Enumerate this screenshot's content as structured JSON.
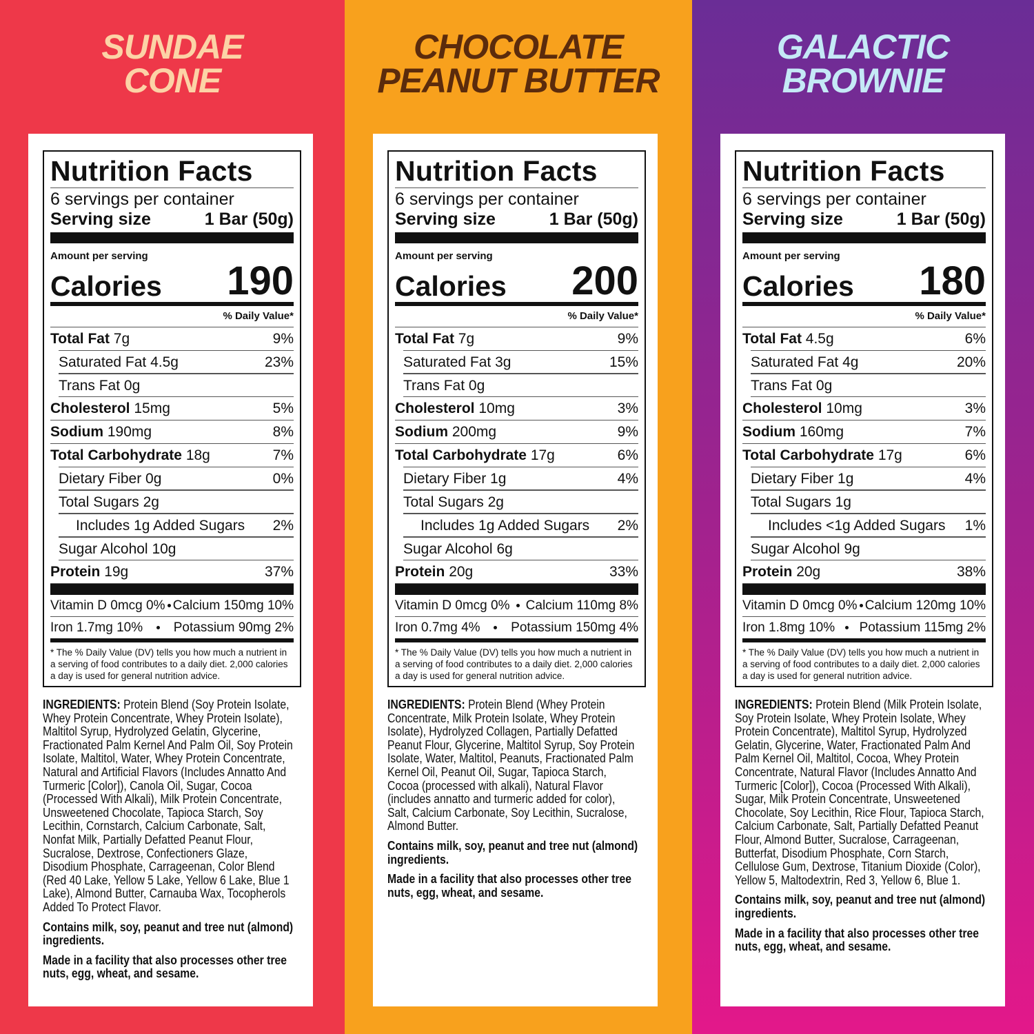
{
  "panels": [
    {
      "title": [
        "SUNDAE",
        "CONE"
      ],
      "nutrition": {
        "heading": "Nutrition Facts",
        "servings": "6 servings per container",
        "serving_size_label": "Serving size",
        "serving_size": "1 Bar (50g)",
        "amount_per_serving": "Amount per serving",
        "calories_label": "Calories",
        "calories": "190",
        "dv_header": "% Daily Value*",
        "rows": [
          {
            "name": "Total Fat",
            "amount": "7g",
            "dv": "9%"
          },
          {
            "name": "Saturated Fat",
            "amount": "4.5g",
            "dv": "23%"
          },
          {
            "name": "Trans Fat",
            "amount": "0g"
          },
          {
            "name": "Cholesterol",
            "amount": "15mg",
            "dv": "5%"
          },
          {
            "name": "Sodium",
            "amount": "190mg",
            "dv": "8%"
          },
          {
            "name": "Total Carbohydrate",
            "amount": "18g",
            "dv": "7%"
          },
          {
            "name": "Dietary Fiber",
            "amount": "0g",
            "dv": "0%"
          },
          {
            "name": "Total Sugars",
            "amount": "2g"
          },
          {
            "name": "Includes 1g Added Sugars",
            "dv": "2%"
          },
          {
            "name": "Sugar Alcohol",
            "amount": "10g"
          },
          {
            "name": "Protein",
            "amount": "19g",
            "dv": "37%"
          }
        ],
        "vitamins": [
          [
            "Vitamin D 0mcg 0%",
            "Calcium 150mg 10%"
          ],
          [
            "Iron 1.7mg 10%",
            "Potassium 90mg 2%"
          ]
        ],
        "footnote": "* The % Daily Value (DV) tells you how much a nutrient in a serving of food contributes to a daily diet. 2,000 calories a day is used for general nutrition advice."
      },
      "ingredients": {
        "label": "INGREDIENTS:",
        "text": "Protein Blend (Soy Protein Isolate, Whey Protein Concentrate, Whey Protein Isolate), Maltitol Syrup, Hydrolyzed Gelatin, Glycerine, Fractionated Palm Kernel And Palm Oil, Soy Protein Isolate, Maltitol, Water, Whey Protein Concentrate, Natural and Artificial Flavors (Includes Annatto And Turmeric [Color]), Canola Oil, Sugar, Cocoa (Processed With Alkali), Milk Protein Concentrate, Unsweetened Chocolate, Tapioca Starch, Soy Lecithin, Cornstarch, Calcium Carbonate, Salt, Nonfat Milk, Partially Defatted Peanut Flour, Sucralose, Dextrose, Confectioners Glaze, Disodium Phosphate, Carrageenan, Color Blend (Red 40 Lake, Yellow 5 Lake, Yellow 6 Lake, Blue 1 Lake), Almond Butter, Carnauba Wax, Tocopherols Added To Protect Flavor."
      },
      "contains": "Contains milk, soy, peanut and tree nut (almond) ingredients.",
      "facility": "Made in a facility that also processes other tree nuts, egg, wheat, and sesame."
    },
    {
      "title": [
        "CHOCOLATE",
        "PEANUT BUTTER"
      ],
      "nutrition": {
        "heading": "Nutrition Facts",
        "servings": "6 servings per container",
        "serving_size_label": "Serving size",
        "serving_size": "1 Bar (50g)",
        "amount_per_serving": "Amount per serving",
        "calories_label": "Calories",
        "calories": "200",
        "dv_header": "% Daily Value*",
        "rows": [
          {
            "name": "Total Fat",
            "amount": "7g",
            "dv": "9%"
          },
          {
            "name": "Saturated Fat",
            "amount": "3g",
            "dv": "15%"
          },
          {
            "name": "Trans Fat",
            "amount": "0g"
          },
          {
            "name": "Cholesterol",
            "amount": "10mg",
            "dv": "3%"
          },
          {
            "name": "Sodium",
            "amount": "200mg",
            "dv": "9%"
          },
          {
            "name": "Total Carbohydrate",
            "amount": "17g",
            "dv": "6%"
          },
          {
            "name": "Dietary Fiber",
            "amount": "1g",
            "dv": "4%"
          },
          {
            "name": "Total Sugars",
            "amount": "2g"
          },
          {
            "name": "Includes 1g Added Sugars",
            "dv": "2%"
          },
          {
            "name": "Sugar Alcohol",
            "amount": "6g"
          },
          {
            "name": "Protein",
            "amount": "20g",
            "dv": "33%"
          }
        ],
        "vitamins": [
          [
            "Vitamin D 0mcg 0%",
            "Calcium 110mg 8%"
          ],
          [
            "Iron 0.7mg 4%",
            "Potassium 150mg 4%"
          ]
        ],
        "footnote": "* The % Daily Value (DV) tells you how much a nutrient in a serving of food contributes to a daily diet. 2,000 calories a day is used for general nutrition advice."
      },
      "ingredients": {
        "label": "INGREDIENTS:",
        "text": "Protein Blend (Whey Protein Concentrate, Milk Protein Isolate, Whey Protein Isolate), Hydrolyzed Collagen, Partially Defatted Peanut Flour, Glycerine, Maltitol Syrup, Soy Protein Isolate, Water, Maltitol, Peanuts, Fractionated Palm Kernel Oil, Peanut Oil, Sugar, Tapioca Starch, Cocoa (processed with alkali), Natural Flavor (includes annatto and turmeric added for color), Salt, Calcium Carbonate, Soy Lecithin, Sucralose, Almond Butter."
      },
      "contains": "Contains milk, soy, peanut and tree nut (almond) ingredients.",
      "facility": "Made in a facility that also processes other tree nuts, egg, wheat, and sesame."
    },
    {
      "title": [
        "GALACTIC",
        "BROWNIE"
      ],
      "nutrition": {
        "heading": "Nutrition Facts",
        "servings": "6 servings per container",
        "serving_size_label": "Serving size",
        "serving_size": "1 Bar (50g)",
        "amount_per_serving": "Amount per serving",
        "calories_label": "Calories",
        "calories": "180",
        "dv_header": "% Daily Value*",
        "rows": [
          {
            "name": "Total Fat",
            "amount": "4.5g",
            "dv": "6%"
          },
          {
            "name": "Saturated Fat",
            "amount": "4g",
            "dv": "20%"
          },
          {
            "name": "Trans Fat",
            "amount": "0g"
          },
          {
            "name": "Cholesterol",
            "amount": "10mg",
            "dv": "3%"
          },
          {
            "name": "Sodium",
            "amount": "160mg",
            "dv": "7%"
          },
          {
            "name": "Total Carbohydrate",
            "amount": "17g",
            "dv": "6%"
          },
          {
            "name": "Dietary Fiber",
            "amount": "1g",
            "dv": "4%"
          },
          {
            "name": "Total Sugars",
            "amount": "1g"
          },
          {
            "name": "Includes <1g Added Sugars",
            "dv": "1%"
          },
          {
            "name": "Sugar Alcohol",
            "amount": "9g"
          },
          {
            "name": "Protein",
            "amount": "20g",
            "dv": "38%"
          }
        ],
        "vitamins": [
          [
            "Vitamin D 0mcg 0%",
            "Calcium 120mg 10%"
          ],
          [
            "Iron 1.8mg 10%",
            "Potassium 115mg 2%"
          ]
        ],
        "footnote": "* The % Daily Value (DV) tells you how much a nutrient in a serving of food contributes to a daily diet. 2,000 calories a day is used for general nutrition advice."
      },
      "ingredients": {
        "label": "INGREDIENTS:",
        "text": "Protein Blend (Milk Protein Isolate, Soy Protein Isolate, Whey Protein Isolate, Whey Protein Concentrate), Maltitol Syrup, Hydrolyzed Gelatin, Glycerine, Water, Fractionated Palm And Palm Kernel Oil, Maltitol, Cocoa, Whey Protein Concentrate, Natural Flavor (Includes Annatto And Turmeric [Color]), Cocoa (Processed With Alkali), Sugar, Milk Protein Concentrate, Unsweetened Chocolate, Soy Lecithin, Rice Flour, Tapioca Starch, Calcium Carbonate, Salt, Partially Defatted Peanut Flour, Almond Butter, Sucralose, Carrageenan, Butterfat, Disodium Phosphate, Corn Starch, Cellulose Gum, Dextrose, Titanium Dioxide (Color), Yellow 5, Maltodextrin, Red 3, Yellow 6, Blue 1."
      },
      "contains": "Contains milk, soy, peanut and tree nut (almond) ingredients.",
      "facility": "Made in a facility that also processes other tree nuts, egg, wheat, and sesame."
    }
  ]
}
